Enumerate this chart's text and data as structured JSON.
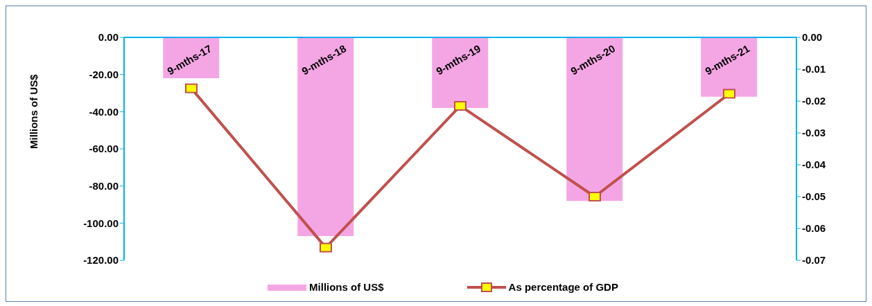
{
  "chart_data": {
    "type": "bar",
    "ylabel": "Millions of US$",
    "categories": [
      "9-mths-17",
      "9-mths-18",
      "9-mths-19",
      "9-mths-20",
      "9-mths-21"
    ],
    "series": [
      {
        "name": "Millions of US$",
        "color": "#f4a6e4",
        "values": [
          -22,
          -107,
          -38,
          -88,
          -32
        ]
      },
      {
        "name": "As percentage of GDP",
        "type": "line",
        "axis": "y2",
        "color": "#c0504d",
        "marker": "square",
        "values": [
          -0.016,
          -0.066,
          -0.0215,
          -0.05,
          -0.0177
        ]
      }
    ],
    "ylim": [
      -120,
      0
    ],
    "yticks": [
      {
        "value": 0,
        "label": "0.00"
      },
      {
        "value": -20,
        "label": "-20.00"
      },
      {
        "value": -40,
        "label": "-40.00"
      },
      {
        "value": -60,
        "label": "-60.00"
      },
      {
        "value": -80,
        "label": "-80.00"
      },
      {
        "value": -100,
        "label": "-100.00"
      },
      {
        "value": -120,
        "label": "-120.00"
      }
    ],
    "y2lim": [
      -0.07,
      0
    ],
    "y2ticks": [
      {
        "value": 0,
        "label": "0.00"
      },
      {
        "value": -0.01,
        "label": "-0.01"
      },
      {
        "value": -0.02,
        "label": "-0.02"
      },
      {
        "value": -0.03,
        "label": "-0.03"
      },
      {
        "value": -0.04,
        "label": "-0.04"
      },
      {
        "value": -0.05,
        "label": "-0.05"
      },
      {
        "value": -0.06,
        "label": "-0.06"
      },
      {
        "value": -0.07,
        "label": "-0.07"
      }
    ],
    "grid": false,
    "legend": "bottom"
  }
}
